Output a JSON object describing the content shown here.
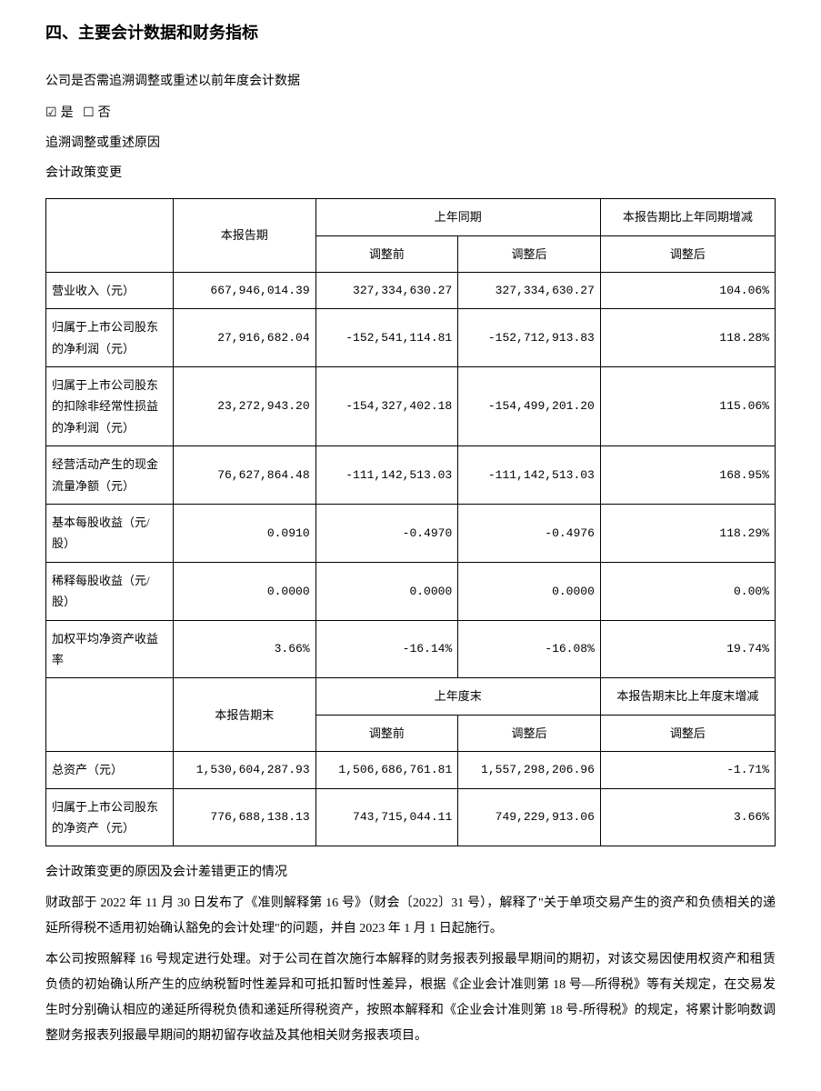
{
  "section_title": "四、主要会计数据和财务指标",
  "intro": {
    "q1": "公司是否需追溯调整或重述以前年度会计数据",
    "opt_yes": "是",
    "opt_no": "否",
    "reason_label": "追溯调整或重述原因",
    "reason_value": "会计政策变更"
  },
  "table1": {
    "h_current": "本报告期",
    "h_prior": "上年同期",
    "h_change": "本报告期比上年同期增减",
    "h_before": "调整前",
    "h_after": "调整后",
    "h_after2": "调整后",
    "rows": [
      {
        "label": "营业收入（元）",
        "cur": "667,946,014.39",
        "before": "327,334,630.27",
        "after": "327,334,630.27",
        "chg": "104.06%"
      },
      {
        "label": "归属于上市公司股东的净利润（元）",
        "cur": "27,916,682.04",
        "before": "-152,541,114.81",
        "after": "-152,712,913.83",
        "chg": "118.28%"
      },
      {
        "label": "归属于上市公司股东的扣除非经常性损益的净利润（元）",
        "cur": "23,272,943.20",
        "before": "-154,327,402.18",
        "after": "-154,499,201.20",
        "chg": "115.06%"
      },
      {
        "label": "经营活动产生的现金流量净额（元）",
        "cur": "76,627,864.48",
        "before": "-111,142,513.03",
        "after": "-111,142,513.03",
        "chg": "168.95%"
      },
      {
        "label": "基本每股收益（元/股）",
        "cur": "0.0910",
        "before": "-0.4970",
        "after": "-0.4976",
        "chg": "118.29%"
      },
      {
        "label": "稀释每股收益（元/股）",
        "cur": "0.0000",
        "before": "0.0000",
        "after": "0.0000",
        "chg": "0.00%"
      },
      {
        "label": "加权平均净资产收益率",
        "cur": "3.66%",
        "before": "-16.14%",
        "after": "-16.08%",
        "chg": "19.74%"
      }
    ],
    "h2_current": "本报告期末",
    "h2_prior": "上年度末",
    "h2_change": "本报告期末比上年度末增减",
    "rows2": [
      {
        "label": "总资产（元）",
        "cur": "1,530,604,287.93",
        "before": "1,506,686,761.81",
        "after": "1,557,298,206.96",
        "chg": "-1.71%"
      },
      {
        "label": "归属于上市公司股东的净资产（元）",
        "cur": "776,688,138.13",
        "before": "743,715,044.11",
        "after": "749,229,913.06",
        "chg": "3.66%"
      }
    ]
  },
  "notes": {
    "n1": "会计政策变更的原因及会计差错更正的情况",
    "n2": "财政部于 2022 年 11 月 30 日发布了《准则解释第 16 号》（财会〔2022〕31 号），解释了\"关于单项交易产生的资产和负债相关的递延所得税不适用初始确认豁免的会计处理\"的问题，并自 2023 年 1 月 1 日起施行。",
    "n3": "本公司按照解释 16 号规定进行处理。对于公司在首次施行本解释的财务报表列报最早期间的期初，对该交易因使用权资产和租赁负债的初始确认所产生的应纳税暂时性差异和可抵扣暂时性差异，根据《企业会计准则第 18 号—所得税》等有关规定，在交易发生时分别确认相应的递延所得税负债和递延所得税资产，按照本解释和《企业会计准则第 18 号-所得税》的规定，将累计影响数调整财务报表列报最早期间的期初留存收益及其他相关财务报表项目。"
  }
}
